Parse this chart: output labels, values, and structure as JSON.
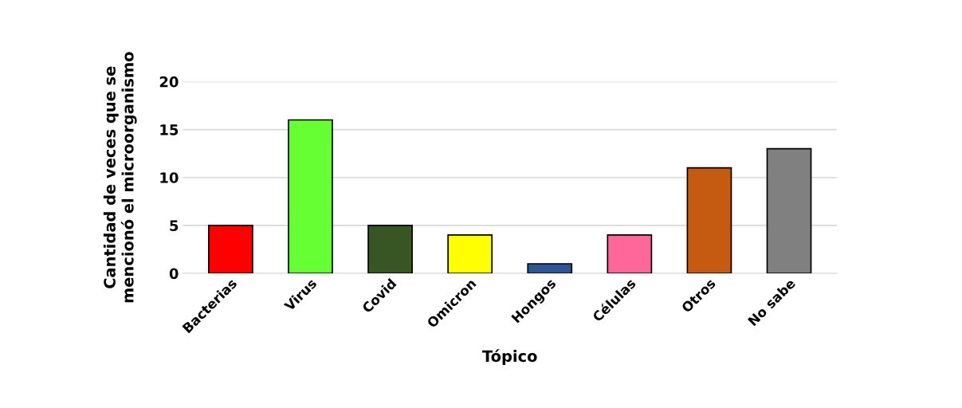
{
  "chart_data": {
    "type": "bar",
    "xlabel": "Tópico",
    "ylabel": "Cantidad de veces que se\nmencionó el microorganismo",
    "categories": [
      "Bacterias",
      "Virus",
      "Covid",
      "Omicron",
      "Hongos",
      "Células",
      "Otros",
      "No sabe"
    ],
    "values": [
      5,
      16,
      5,
      4,
      1,
      4,
      11,
      13
    ],
    "colors": [
      "#ff0000",
      "#66ff33",
      "#375623",
      "#ffff00",
      "#2f5597",
      "#ff6699",
      "#c55a11",
      "#808080"
    ],
    "ylim": [
      0,
      20
    ],
    "yticks": [
      0,
      5,
      10,
      15,
      20
    ],
    "grid": "y"
  }
}
